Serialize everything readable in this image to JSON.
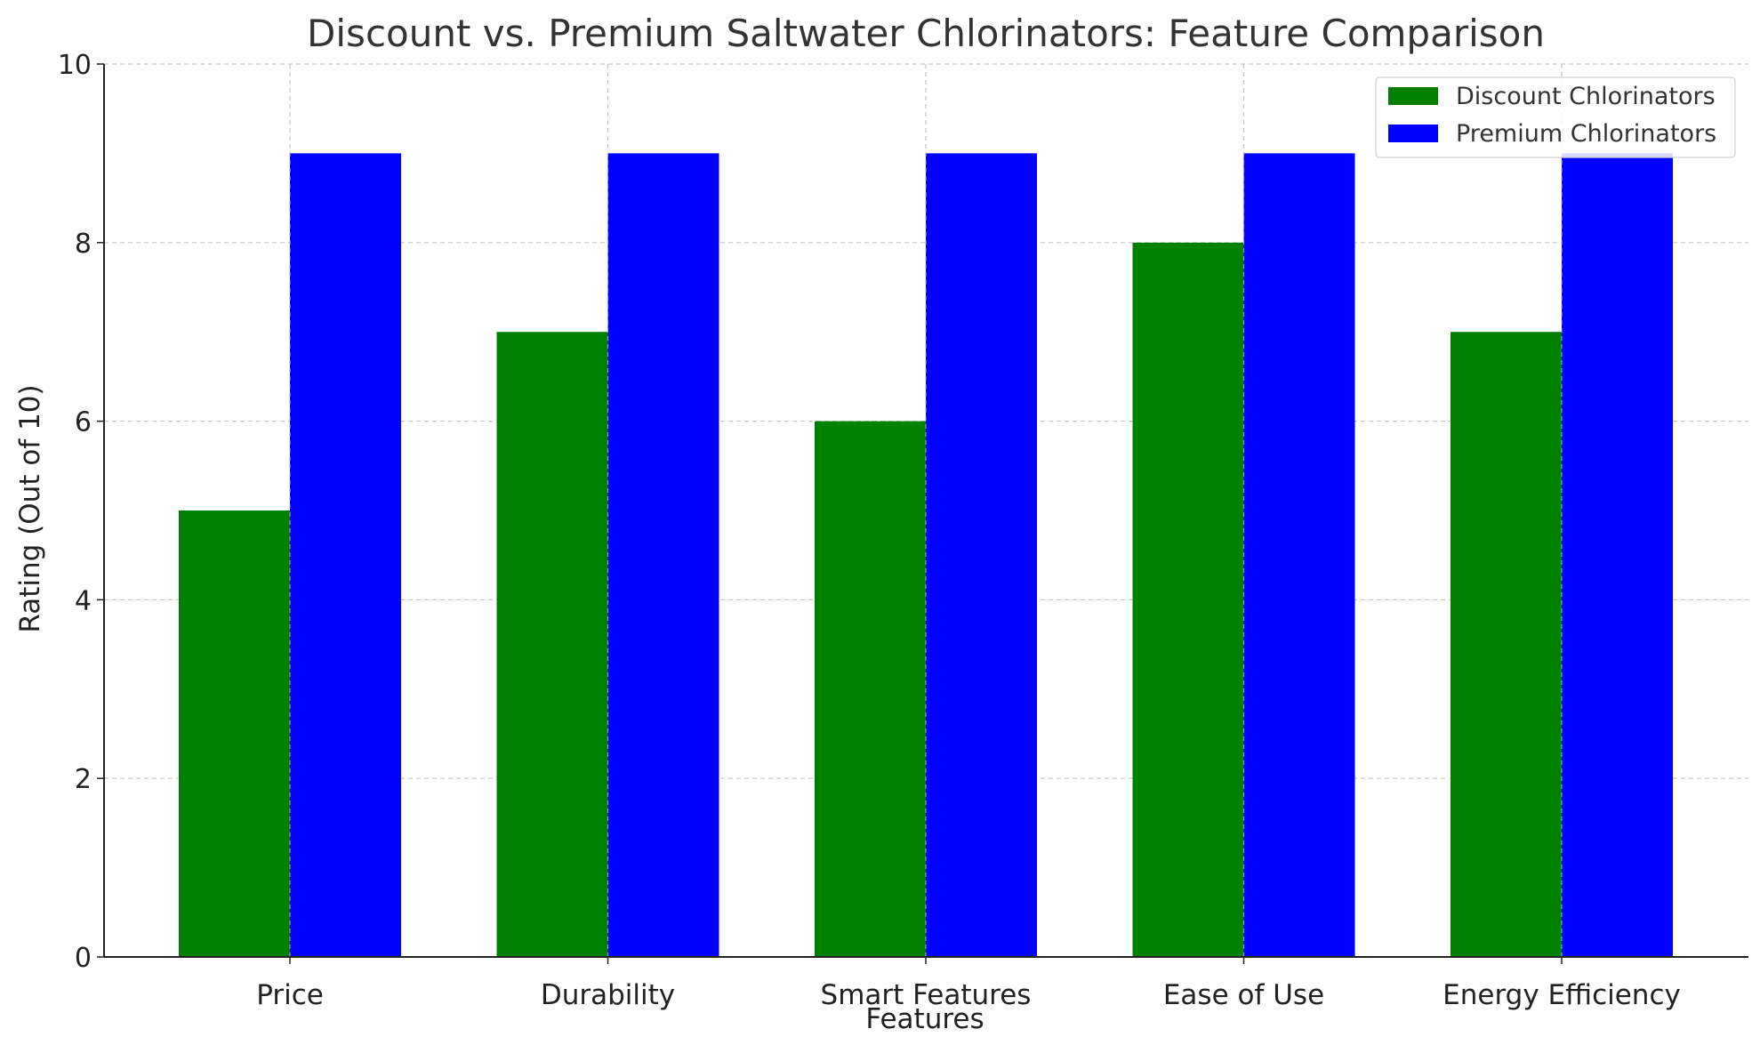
{
  "chart_data": {
    "type": "bar",
    "title": "Discount vs. Premium Saltwater Chlorinators: Feature Comparison",
    "xlabel": "Features",
    "ylabel": "Rating (Out of 10)",
    "categories": [
      "Price",
      "Durability",
      "Smart Features",
      "Ease of Use",
      "Energy Efficiency"
    ],
    "series": [
      {
        "name": "Discount Chlorinators",
        "values": [
          5,
          7,
          6,
          8,
          7
        ],
        "color": "#008000"
      },
      {
        "name": "Premium Chlorinators",
        "values": [
          9,
          9,
          9,
          9,
          9
        ],
        "color": "#0000ff"
      }
    ],
    "ylim": [
      0,
      10
    ],
    "yticks": [
      0,
      2,
      4,
      6,
      8,
      10
    ],
    "grid": true,
    "legend_position": "top-right"
  }
}
